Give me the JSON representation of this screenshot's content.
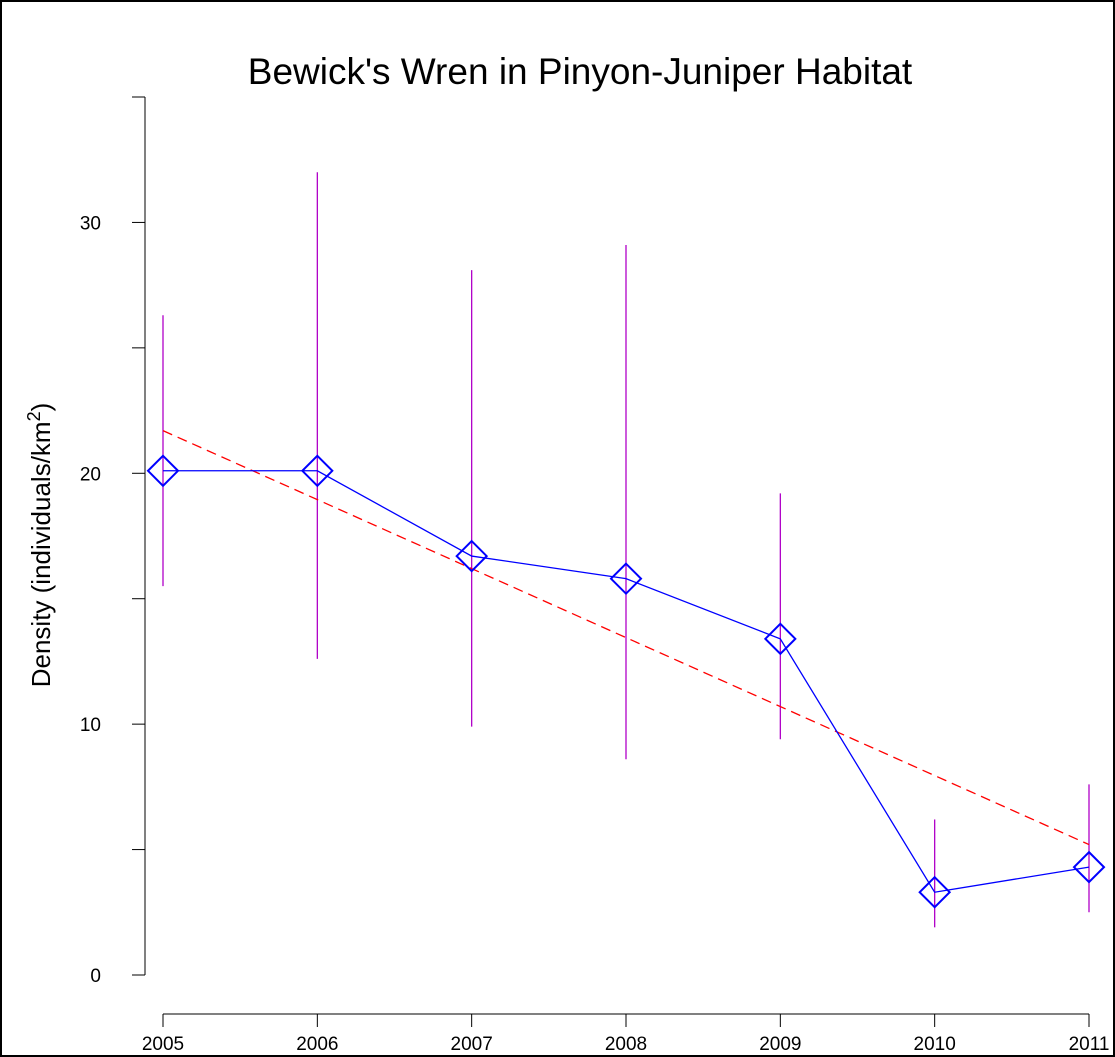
{
  "chart_data": {
    "type": "line",
    "title": "Bewick's Wren in Pinyon-Juniper Habitat",
    "xlabel": "",
    "ylabel": {
      "text": "Density (individuals/km",
      "superscript": "2",
      "suffix": ")"
    },
    "x": [
      2005,
      2006,
      2007,
      2008,
      2009,
      2010,
      2011
    ],
    "x_tick_labels": [
      "2005",
      "2006",
      "2007",
      "2008",
      "2009",
      "2010",
      "2011"
    ],
    "y_ticks_labeled": [
      0,
      10,
      20,
      30
    ],
    "y_tick_labels": [
      "0",
      "10",
      "20",
      "30"
    ],
    "y_ticks_minor": [
      5,
      15,
      25
    ],
    "ylim": [
      0,
      35
    ],
    "xlim": [
      2005,
      2011
    ],
    "grid": false,
    "series": [
      {
        "values": [
          20.1,
          20.1,
          16.7,
          15.8,
          13.4,
          3.3,
          4.3
        ],
        "ci_lower": [
          15.5,
          12.6,
          9.9,
          8.6,
          9.4,
          1.9,
          2.5
        ],
        "ci_upper": [
          26.3,
          32.0,
          28.1,
          29.1,
          19.2,
          6.2,
          7.6
        ],
        "marker": "diamond"
      }
    ],
    "trend_line": {
      "start": [
        2005,
        21.7
      ],
      "end": [
        2011,
        5.2
      ],
      "style": "dashed"
    },
    "colors": {
      "series": "#0000ff",
      "error_bars": "#b000c8",
      "trend": "#ff0000",
      "axes": "#000000"
    }
  }
}
